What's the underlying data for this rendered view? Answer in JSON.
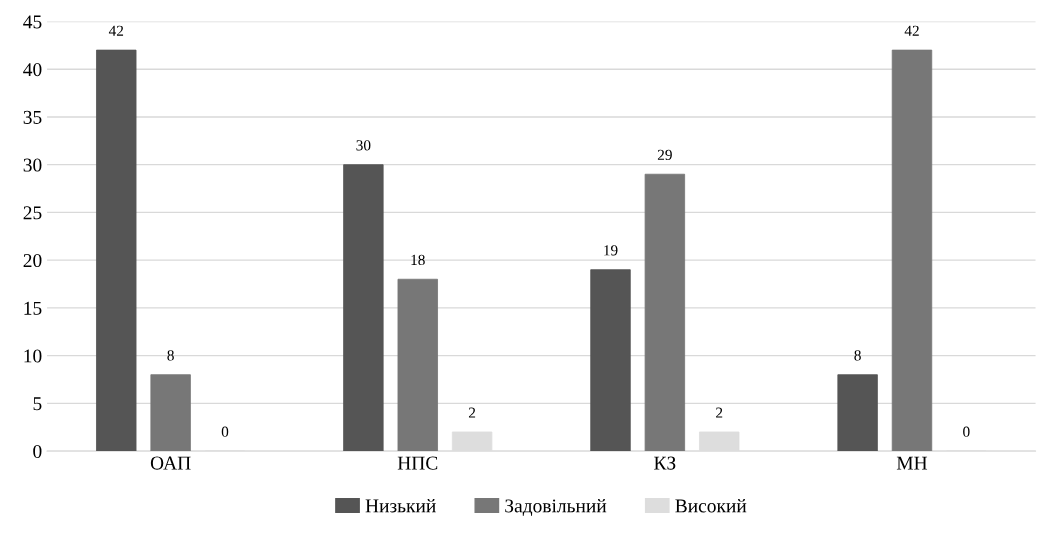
{
  "chart_data": {
    "type": "bar",
    "categories": [
      "ОАП",
      "НПС",
      "КЗ",
      "МН"
    ],
    "series": [
      {
        "name": "Низький",
        "color": "#555555",
        "values": [
          42,
          30,
          19,
          8
        ]
      },
      {
        "name": "Задовільний",
        "color": "#777777",
        "values": [
          8,
          18,
          29,
          42
        ]
      },
      {
        "name": "Високий",
        "color": "#dddddd",
        "values": [
          0,
          2,
          2,
          0
        ]
      }
    ],
    "ylim": [
      0,
      45
    ],
    "yticks": [
      0,
      5,
      10,
      15,
      20,
      25,
      30,
      35,
      40,
      45
    ],
    "grid": "y",
    "legend": "bottom",
    "data_labels": true
  }
}
